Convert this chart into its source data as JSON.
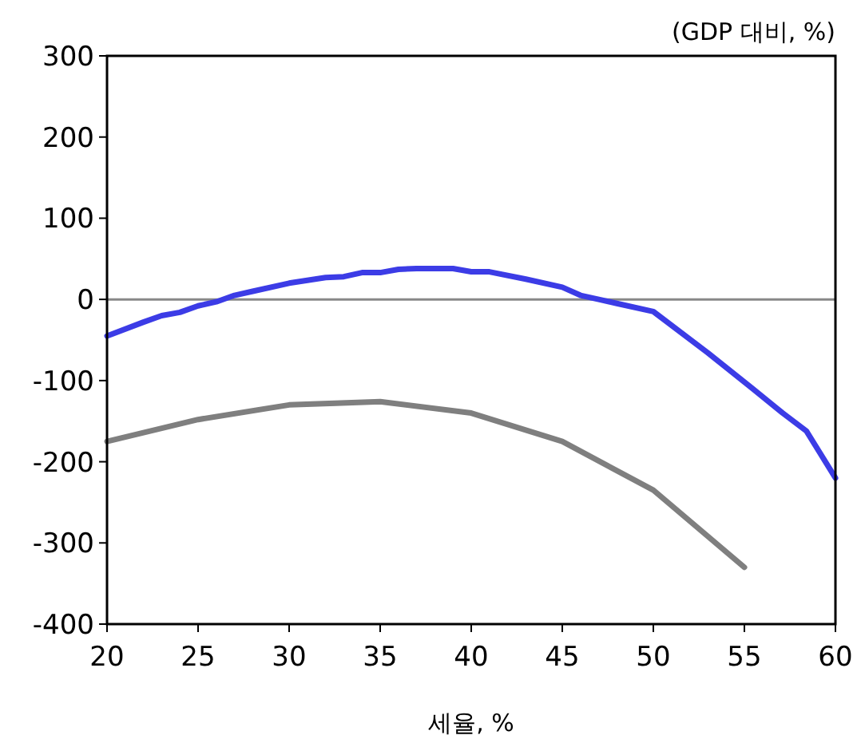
{
  "chart_data": {
    "type": "line",
    "xlabel": "세율, %",
    "ylabel": "(GDP 대비, %)",
    "xlim": [
      20,
      60
    ],
    "xticks": [
      20,
      25,
      30,
      35,
      40,
      45,
      50,
      55,
      60
    ],
    "ylim": [
      -400,
      300
    ],
    "yticks": [
      -400,
      -300,
      -200,
      -100,
      0,
      100,
      200,
      300
    ],
    "grid": false,
    "marker": "none",
    "line_style": "solid",
    "ref_lines": [
      {
        "axis": "y",
        "value": 0,
        "color": "#888888"
      }
    ],
    "series": [
      {
        "color": "#3c3ce6",
        "x": [
          20,
          22,
          23,
          24,
          25,
          26,
          27,
          28,
          30,
          32,
          33,
          34,
          35,
          36,
          37,
          39,
          40,
          41,
          43,
          45,
          46,
          47,
          48,
          50,
          53,
          55.4,
          57.1,
          58.4,
          60
        ],
        "values": [
          -45,
          -28,
          -20,
          -16,
          -8,
          -3,
          5,
          10,
          20,
          27,
          28,
          33,
          33,
          37,
          38,
          38,
          34,
          34,
          25,
          15,
          5,
          0,
          -5,
          -15,
          -66,
          -109,
          -140,
          -162,
          -220
        ]
      },
      {
        "color": "#7f7f7f",
        "x": [
          20,
          25,
          30,
          35,
          40,
          45,
          50,
          55
        ],
        "values": [
          -175,
          -148,
          -130,
          -126,
          -140,
          -175,
          -235,
          -330
        ]
      }
    ]
  }
}
